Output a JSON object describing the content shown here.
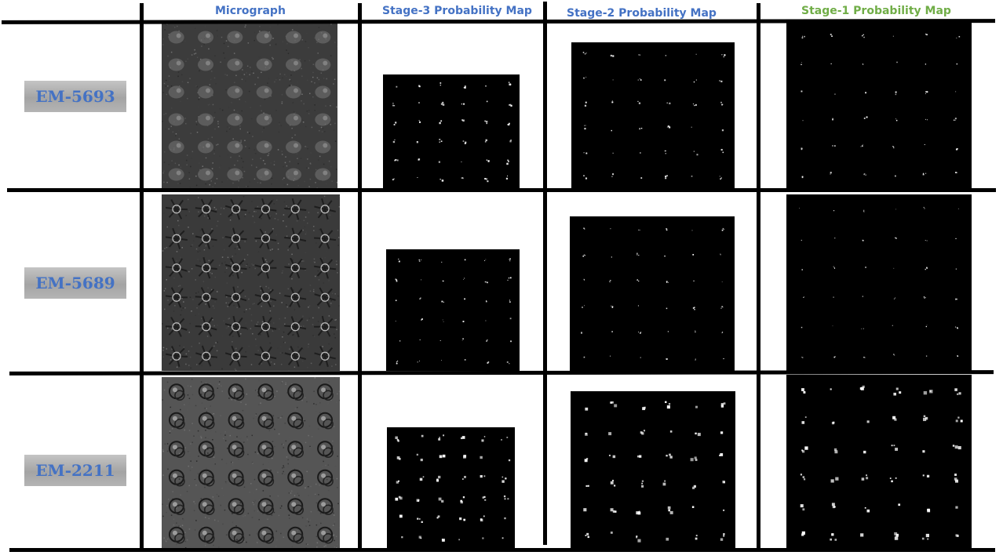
{
  "colors": {
    "header_blue": "#4472C4",
    "header_green": "#70AD47",
    "label_text": "#4472C4",
    "grid_line": "#000000",
    "micrograph_bg": "#3a3a3a",
    "map_bg": "#000000"
  },
  "headers": {
    "micrograph": "Micrograph",
    "stage3": "Stage-3 Probability Map",
    "stage2": "Stage-2 Probability Map",
    "stage1": "Stage-1 Probability Map"
  },
  "rows": [
    {
      "label": "EM-5693"
    },
    {
      "label": "EM-5689"
    },
    {
      "label": "EM-2211"
    }
  ]
}
